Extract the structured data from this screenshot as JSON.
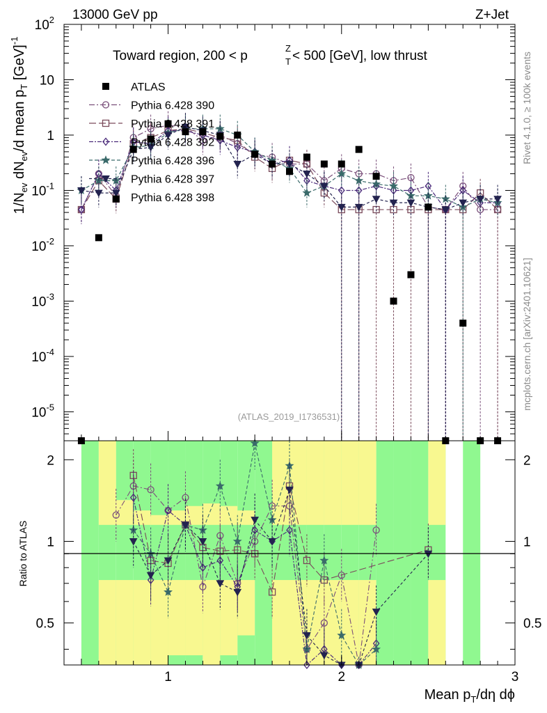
{
  "header": {
    "energy_label": "13000 GeV pp",
    "process_label": "Z+Jet",
    "title_main": "Toward region, 200 < p",
    "title_sup": "Z",
    "title_sub": "T",
    "title_rest": " < 500 [GeV], low thrust",
    "analysis_id": "(ATLAS_2019_I1736531)",
    "rivet_label": "Rivet 4.1.0, ≥ 100k events",
    "mcplots_label": "mcplots.cern.ch [arXiv:2401.10621]"
  },
  "axes": {
    "ylabel_main": "1/N_ev dN_ev/d mean p_T [GeV]^-1",
    "ylabel_ratio": "Ratio to ATLAS",
    "xlabel": "Mean p_T/dη dϕ",
    "x_ticks": [
      "1",
      "2",
      "3"
    ],
    "y_ticks_main": [
      {
        "base": "10",
        "exp": "2"
      },
      {
        "base": "10",
        "exp": ""
      },
      {
        "base": "1",
        "exp": ""
      },
      {
        "base": "10",
        "exp": "-1"
      },
      {
        "base": "10",
        "exp": "-2"
      },
      {
        "base": "10",
        "exp": "-3"
      },
      {
        "base": "10",
        "exp": "-4"
      },
      {
        "base": "10",
        "exp": "-5"
      }
    ],
    "y_ticks_ratio": [
      "2",
      "1",
      "0.5"
    ]
  },
  "colors": {
    "data": "#000000",
    "band_green": "#90f890",
    "band_yellow": "#f8f890"
  },
  "chart_data": {
    "type": "scatter",
    "x_scale": "linear",
    "y_scale": "log",
    "xlim": [
      0.4,
      3.0
    ],
    "ylim": [
      3e-06,
      100
    ],
    "ratio_ylim": [
      0.35,
      2.35
    ],
    "x": [
      0.5,
      0.6,
      0.7,
      0.8,
      0.9,
      1.0,
      1.1,
      1.2,
      1.3,
      1.4,
      1.5,
      1.6,
      1.7,
      1.8,
      1.9,
      2.0,
      2.1,
      2.2,
      2.3,
      2.4,
      2.5,
      2.6,
      2.7,
      2.8,
      2.9
    ],
    "data": {
      "name": "ATLAS",
      "values": [
        0,
        0.014,
        0.07,
        0.55,
        0.85,
        1.6,
        1.15,
        1.15,
        0.95,
        1.0,
        0.45,
        0.3,
        0.22,
        0.4,
        0.3,
        0.3,
        0.55,
        0.18,
        0.001,
        0.003,
        0.05,
        0,
        0.0004,
        0,
        0
      ]
    },
    "ratio_bands": {
      "green": [
        [
          0.55,
          0.35,
          2.35
        ],
        [
          0.65,
          0.35,
          2.35
        ],
        [
          0.75,
          0.35,
          2.35
        ],
        [
          0.85,
          0.35,
          2.35
        ],
        [
          0.95,
          0.35,
          2.35
        ],
        [
          1.05,
          0.35,
          2.35
        ],
        [
          1.15,
          0.35,
          2.35
        ],
        [
          1.25,
          0.35,
          2.35
        ],
        [
          1.35,
          0.35,
          2.35
        ],
        [
          1.45,
          0.35,
          2.35
        ],
        [
          1.55,
          0.35,
          2.35
        ],
        [
          1.65,
          0.35,
          2.35
        ],
        [
          1.75,
          0.35,
          2.35
        ],
        [
          1.85,
          0.35,
          2.35
        ],
        [
          1.95,
          0.35,
          2.35
        ],
        [
          2.05,
          0.35,
          2.35
        ],
        [
          2.15,
          0.35,
          2.35
        ],
        [
          2.25,
          0.35,
          2.35
        ],
        [
          2.35,
          0.35,
          2.35
        ],
        [
          2.45,
          0.35,
          2.35
        ],
        [
          2.55,
          0.35,
          2.35
        ],
        [
          2.75,
          0.35,
          2.35
        ]
      ],
      "yellow": [
        [
          0.65,
          0.35,
          2.35
        ],
        [
          0.75,
          0.35,
          1.42
        ],
        [
          0.85,
          0.35,
          1.3
        ],
        [
          0.95,
          0.35,
          1.25
        ],
        [
          1.05,
          0.38,
          1.3
        ],
        [
          1.15,
          0.38,
          1.35
        ],
        [
          1.25,
          0.35,
          1.38
        ],
        [
          1.35,
          0.38,
          1.35
        ],
        [
          1.45,
          0.45,
          1.3
        ],
        [
          1.65,
          0.35,
          2.35
        ],
        [
          1.75,
          0.35,
          2.35
        ],
        [
          1.85,
          0.35,
          2.35
        ],
        [
          1.95,
          0.35,
          2.35
        ],
        [
          2.05,
          0.35,
          2.35
        ],
        [
          2.15,
          0.35,
          2.35
        ],
        [
          2.55,
          0.35,
          2.35
        ]
      ]
    },
    "series": [
      {
        "name": "Pythia 6.428 390",
        "marker": "circle",
        "color": "#7a4f7a",
        "dash": "8,3,2,3",
        "values": [
          0.045,
          0.2,
          0.08,
          0.9,
          1.3,
          1.5,
          1.4,
          0.8,
          1.0,
          0.7,
          0.45,
          0.4,
          0.3,
          0.3,
          0.15,
          0.25,
          0.2,
          0.2,
          0.15,
          0.17,
          0.05,
          0.045,
          0.12,
          0.045,
          0.045
        ],
        "ratio": [
          null,
          null,
          1.25,
          1.6,
          1.55,
          1.3,
          1.45,
          0.68,
          1.05,
          0.7,
          1.0,
          1.35,
          1.35,
          0.4,
          0.5,
          0.75,
          0.3,
          1.1,
          null,
          null,
          null,
          null,
          null,
          null,
          null
        ]
      },
      {
        "name": "Pythia 6.428 391",
        "marker": "square",
        "color": "#7a4a5a",
        "dash": "10,4",
        "values": [
          0.045,
          0.15,
          0.07,
          0.7,
          0.9,
          1.2,
          1.3,
          1.1,
          0.9,
          0.8,
          0.4,
          0.25,
          0.35,
          0.3,
          0.09,
          0.045,
          0.045,
          0.045,
          0.045,
          0.045,
          0.045,
          0.045,
          0.045,
          0.09,
          0.045
        ],
        "ratio": [
          null,
          null,
          null,
          1.75,
          0.85,
          0.83,
          1.15,
          0.95,
          0.92,
          0.93,
          0.9,
          0.65,
          1.6,
          0.85,
          0.72,
          null,
          null,
          null,
          null,
          null,
          0.93,
          null,
          null,
          null,
          null
        ]
      },
      {
        "name": "Pythia 6.428 392",
        "marker": "diamond",
        "color": "#4a2a7a",
        "dash": "6,2,2,2",
        "values": [
          0.045,
          0.2,
          0.1,
          0.75,
          0.7,
          1.2,
          1.2,
          1.0,
          0.8,
          0.6,
          0.5,
          0.3,
          0.35,
          0.15,
          0.12,
          0.1,
          0.1,
          0.12,
          0.1,
          0.1,
          0.12,
          0.045,
          0.1,
          0.06,
          0.06
        ],
        "ratio": [
          null,
          null,
          null,
          1.45,
          0.72,
          1.3,
          1.15,
          0.8,
          0.85,
          0.68,
          1.1,
          1.0,
          1.1,
          0.35,
          0.4,
          0.3,
          0.3,
          0.42,
          null,
          null,
          null,
          null,
          null,
          null,
          null
        ]
      },
      {
        "name": "Pythia 6.428 396",
        "marker": "star",
        "color": "#3a6a6a",
        "dash": "5,3",
        "values": [
          0.1,
          0.15,
          0.15,
          0.6,
          0.65,
          1.1,
          1.3,
          1.3,
          1.3,
          1.0,
          0.5,
          0.35,
          0.25,
          0.09,
          0.12,
          0.2,
          0.15,
          0.13,
          0.12,
          0.08,
          0.08,
          0.07,
          0.05,
          0.07,
          0.06
        ],
        "ratio": [
          null,
          null,
          null,
          1.1,
          0.9,
          0.65,
          1.15,
          1.1,
          1.6,
          1.0,
          2.3,
          1.2,
          1.9,
          0.4,
          0.85,
          0.45,
          0.3,
          0.4,
          null,
          null,
          null,
          null,
          null,
          null,
          null
        ]
      },
      {
        "name": "Pythia 6.428 397",
        "marker": "triangle-down",
        "color": "#23234f",
        "dash": "4,3",
        "values": [
          0.1,
          0.09,
          0.09,
          0.55,
          0.6,
          1.0,
          1.4,
          1.2,
          1.0,
          0.3,
          0.45,
          0.3,
          0.3,
          0.2,
          0.12,
          0.05,
          0.05,
          0.07,
          0.06,
          0.06,
          0.05,
          0.045,
          0.06,
          0.07,
          0.07
        ],
        "ratio": [
          null,
          null,
          null,
          1.0,
          0.75,
          0.85,
          1.15,
          1.0,
          0.7,
          0.65,
          1.2,
          1.0,
          1.55,
          0.45,
          0.38,
          0.3,
          0.25,
          0.55,
          null,
          null,
          0.9,
          null,
          null,
          null,
          null
        ]
      }
    ],
    "legend_extra": "Pythia 6.428 398"
  }
}
